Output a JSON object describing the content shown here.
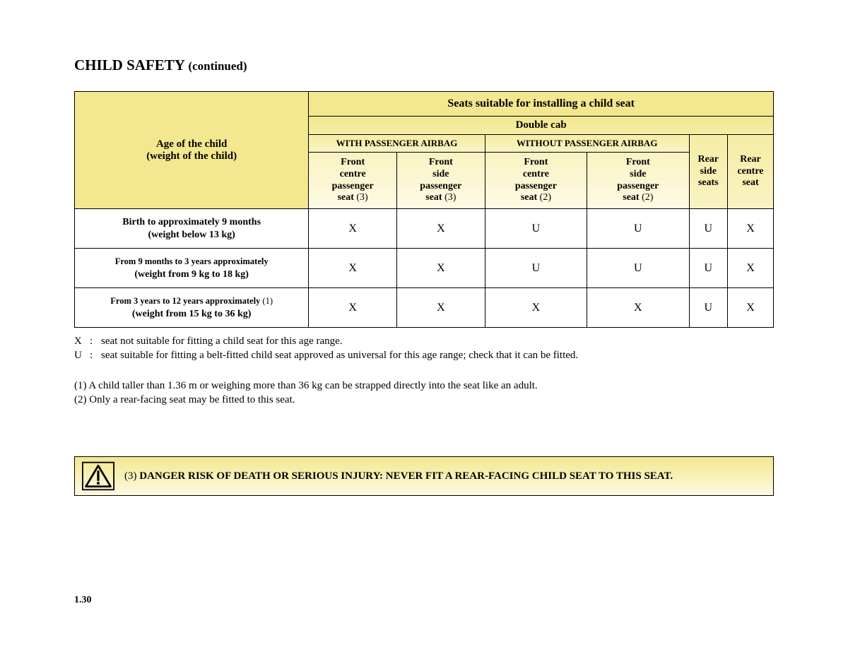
{
  "title": {
    "main": "CHILD SAFETY",
    "continued": "(continued)"
  },
  "table": {
    "age_header_line1": "Age of the child",
    "age_header_line2": "(weight of the child)",
    "suitable_header": "Seats suitable for installing a child seat",
    "cab_header": "Double cab",
    "with_airbag": "WITH PASSENGER AIRBAG",
    "without_airbag": "WITHOUT PASSENGER AIRBAG",
    "seat_cols": [
      {
        "l1": "Front",
        "l2": "centre",
        "l3": "passenger",
        "l4": "seat",
        "ref": "(3)"
      },
      {
        "l1": "Front",
        "l2": "side",
        "l3": "passenger",
        "l4": "seat",
        "ref": "(3)"
      },
      {
        "l1": "Front",
        "l2": "centre",
        "l3": "passenger",
        "l4": "seat",
        "ref": "(2)"
      },
      {
        "l1": "Front",
        "l2": "side",
        "l3": "passenger",
        "l4": "seat",
        "ref": "(2)"
      },
      {
        "l1": "Rear",
        "l2": "side",
        "l3": "seats",
        "l4": "",
        "ref": ""
      },
      {
        "l1": "Rear",
        "l2": "centre",
        "l3": "seat",
        "l4": "",
        "ref": ""
      }
    ],
    "rows": [
      {
        "age": "Birth to approximately 9 months",
        "age_small": false,
        "weight": "(weight below 13 kg)",
        "ref": "",
        "cells": [
          "X",
          "X",
          "U",
          "U",
          "U",
          "X"
        ]
      },
      {
        "age": "From 9 months to 3 years approximately",
        "age_small": true,
        "weight": "(weight from 9 kg to 18 kg)",
        "ref": "",
        "cells": [
          "X",
          "X",
          "U",
          "U",
          "U",
          "X"
        ]
      },
      {
        "age": "From 3 years to 12 years approximately",
        "age_small": true,
        "weight": "(weight from 15 kg to 36 kg)",
        "ref": "(1)",
        "cells": [
          "X",
          "X",
          "X",
          "X",
          "U",
          "X"
        ]
      }
    ]
  },
  "legend": {
    "x_key": "X",
    "x_text": "seat not suitable for fitting a child seat for this age range.",
    "u_key": "U",
    "u_text": "seat suitable for fitting a belt-fitted child seat approved as universal for this age range; check that it can be fitted."
  },
  "footnotes": {
    "f1": "(1) A child taller than 1.36 m or weighing more than 36 kg can be strapped directly into the seat like an adult.",
    "f2": "(2) Only a rear-facing seat may be fitted to this seat."
  },
  "warning": {
    "prefix": "(3)",
    "text": "DANGER RISK OF DEATH OR SERIOUS INJURY: NEVER FIT A REAR-FACING CHILD SEAT TO THIS SEAT."
  },
  "page_number": "1.30"
}
